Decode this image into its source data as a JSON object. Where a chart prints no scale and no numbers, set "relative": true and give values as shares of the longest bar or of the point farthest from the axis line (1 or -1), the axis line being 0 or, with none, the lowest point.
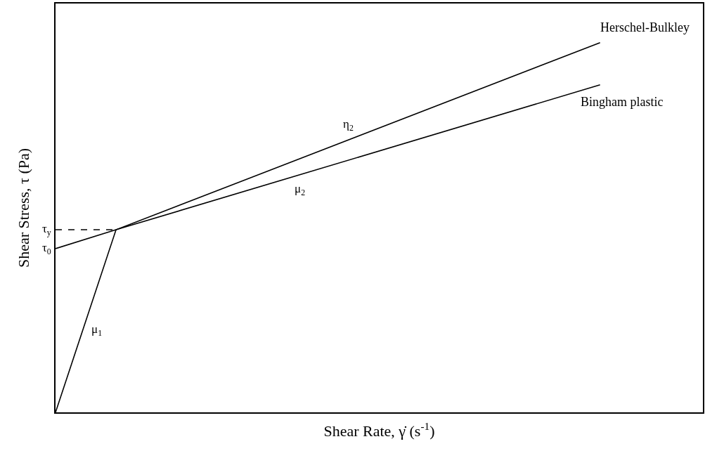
{
  "chart_data": {
    "type": "line",
    "relative": true,
    "xlabel": "Shear Rate, γ̇ (s$^{-1}$)",
    "ylabel": "Shear Stress, τ (Pa)",
    "categories": [
      null,
      null,
      null,
      null,
      null,
      null,
      null,
      null,
      null,
      null,
      null
    ],
    "series": [
      {
        "name": "Herschel-Bulkley",
        "color": "#000000",
        "values": [
          0,
          0.494,
          null,
          null,
          null,
          null,
          null,
          null,
          null,
          1,
          null
        ]
      },
      {
        "name": "Bingham plastic",
        "color": "#000000",
        "values": [
          0.443,
          0.494,
          null,
          null,
          null,
          null,
          null,
          null,
          null,
          0.886,
          null
        ]
      },
      {
        "color": "#000000",
        "values": [
          0.494,
          0.494,
          null,
          null,
          null,
          null,
          null,
          null,
          null,
          null,
          null
        ],
        "line_style": "dashed"
      }
    ],
    "annotations": [
      "τ$_{y}$",
      "τ$_{0}$",
      "μ$_{1}$",
      "μ$_{2}$",
      "η$_{2}$"
    ],
    "legend": false,
    "grid": false,
    "tick_labels": false,
    "marker": "none",
    "line_style": "solid"
  }
}
